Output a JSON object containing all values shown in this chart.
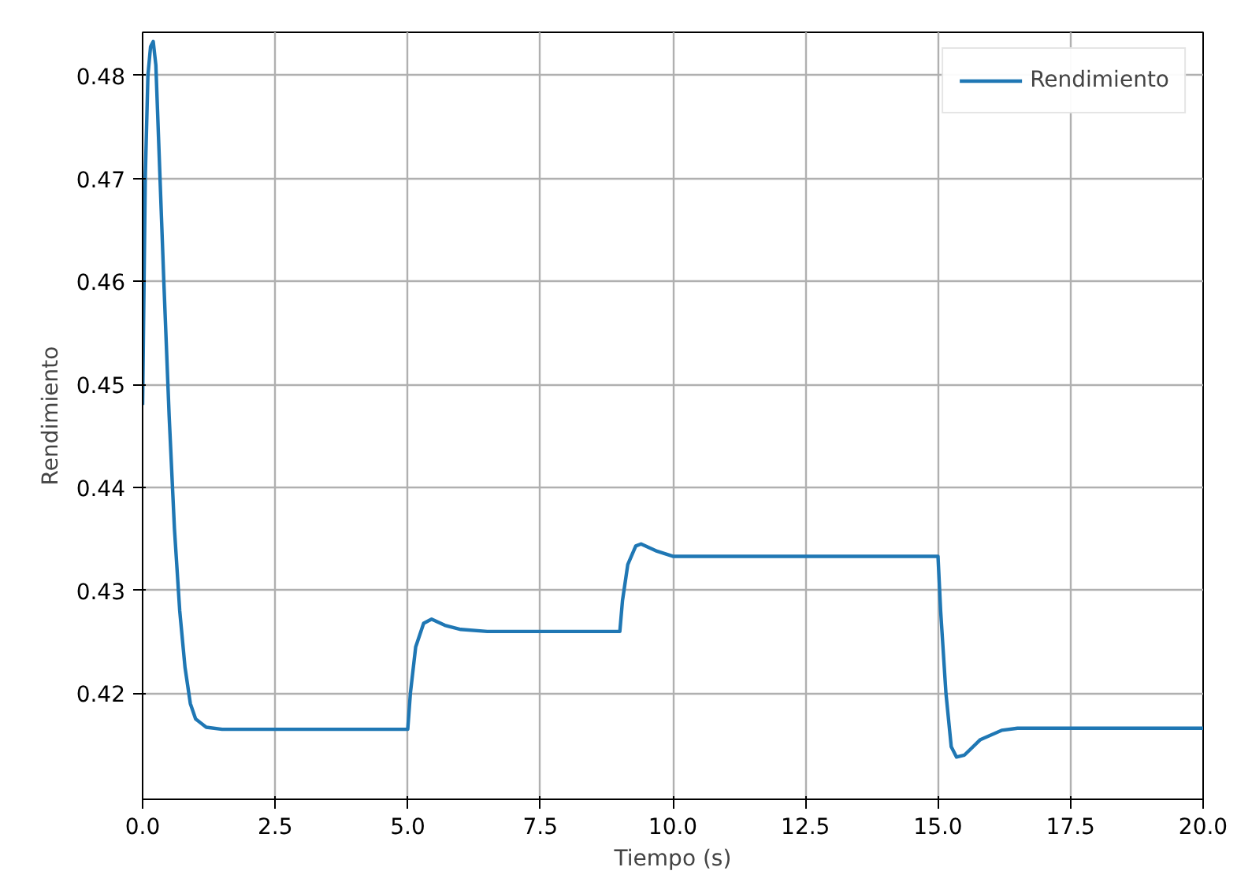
{
  "chart_data": {
    "type": "line",
    "xlabel": "Tiempo (s)",
    "ylabel": "Rendimiento",
    "x": [
      0,
      0.05,
      0.1,
      0.15,
      0.2,
      0.25,
      0.3,
      0.4,
      0.5,
      0.6,
      0.7,
      0.8,
      0.9,
      1.0,
      1.2,
      1.5,
      5.0,
      5.05,
      5.15,
      5.3,
      5.45,
      5.7,
      6.0,
      6.5,
      9.0,
      9.05,
      9.15,
      9.3,
      9.4,
      9.7,
      10.0,
      15.0,
      15.05,
      15.15,
      15.25,
      15.35,
      15.5,
      15.8,
      16.2,
      16.5,
      20
    ],
    "series": [
      {
        "name": "Rendimiento",
        "color": "#1f77b4",
        "values": [
          0.448,
          0.47,
          0.48,
          0.4828,
          0.4833,
          0.481,
          0.474,
          0.46,
          0.447,
          0.436,
          0.428,
          0.4225,
          0.419,
          0.4175,
          0.4167,
          0.4165,
          0.4165,
          0.42,
          0.4245,
          0.4268,
          0.4272,
          0.4266,
          0.4262,
          0.426,
          0.426,
          0.429,
          0.4325,
          0.4343,
          0.4345,
          0.4338,
          0.4333,
          0.4333,
          0.428,
          0.42,
          0.4148,
          0.4138,
          0.414,
          0.4155,
          0.4164,
          0.4166,
          0.4166
        ]
      }
    ],
    "xlim": [
      0,
      20
    ],
    "ylim": [
      0.4097,
      0.4842
    ],
    "xticks": [
      {
        "value": 0,
        "label": "0.0"
      },
      {
        "value": 2.5,
        "label": "2.5"
      },
      {
        "value": 5,
        "label": "5.0"
      },
      {
        "value": 7.5,
        "label": "7.5"
      },
      {
        "value": 10,
        "label": "10.0"
      },
      {
        "value": 12.5,
        "label": "12.5"
      },
      {
        "value": 15,
        "label": "15.0"
      },
      {
        "value": 17.5,
        "label": "17.5"
      },
      {
        "value": 20,
        "label": "20.0"
      }
    ],
    "yticks": [
      0.42,
      0.43,
      0.44,
      0.45,
      0.46,
      0.47,
      0.48
    ],
    "grid": true,
    "legend": "top right",
    "line_style": "solid",
    "marker": "none"
  }
}
